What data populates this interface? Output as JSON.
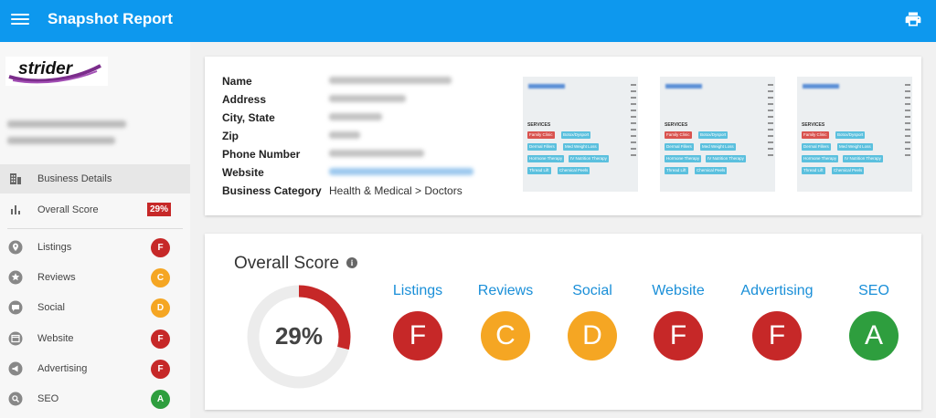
{
  "app": {
    "title": "Snapshot Report"
  },
  "header": {
    "menu_icon": "hamburger-menu-icon",
    "print_icon": "printer-icon"
  },
  "logo": {
    "text": "strider"
  },
  "colors": {
    "primary": "#0d98ee",
    "fail": "#c62828",
    "average": "#f5a623",
    "pass": "#2e9e3e",
    "link": "#1a8fd8"
  },
  "sidebar": {
    "items": [
      {
        "label": "Business Details",
        "icon": "building-icon"
      },
      {
        "label": "Overall Score",
        "icon": "bar-chart-icon",
        "badge": "29%"
      },
      {
        "label": "Listings",
        "icon": "map-pin-icon",
        "grade": "F"
      },
      {
        "label": "Reviews",
        "icon": "star-icon",
        "grade": "C"
      },
      {
        "label": "Social",
        "icon": "chat-bubble-icon",
        "grade": "D"
      },
      {
        "label": "Website",
        "icon": "browser-window-icon",
        "grade": "F"
      },
      {
        "label": "Advertising",
        "icon": "megaphone-icon",
        "grade": "F"
      },
      {
        "label": "SEO",
        "icon": "magnifier-icon",
        "grade": "A"
      }
    ]
  },
  "details": {
    "labels": [
      "Name",
      "Address",
      "City, State",
      "Zip",
      "Phone Number",
      "Website",
      "Business Category"
    ],
    "business_category": "Health & Medical > Doctors"
  },
  "thumbnails": {
    "services_heading": "SERVICES",
    "tags": [
      "Family Clinic",
      "Botox/Dysport",
      "Dermal Fillers",
      "Med Weight Loss",
      "Hormone Therapy",
      "IV Nutrition Therapy",
      "Thread Lift",
      "Chemical Peels"
    ]
  },
  "overall": {
    "title": "Overall Score",
    "info_icon": "info-icon",
    "score_text": "29%",
    "score_value": 29
  },
  "categories": [
    {
      "label": "Listings",
      "grade": "F"
    },
    {
      "label": "Reviews",
      "grade": "C"
    },
    {
      "label": "Social",
      "grade": "D"
    },
    {
      "label": "Website",
      "grade": "F"
    },
    {
      "label": "Advertising",
      "grade": "F"
    },
    {
      "label": "SEO",
      "grade": "A"
    }
  ]
}
